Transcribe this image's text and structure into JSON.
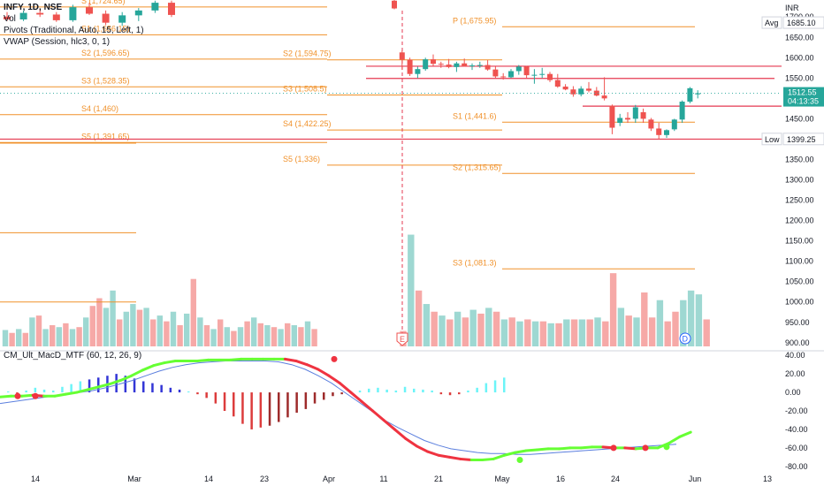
{
  "legend": {
    "symbol": "INFY, 1D, NSE",
    "vol": "Vol",
    "pivots": "Pivots (Traditional, Auto, 15, Left, 1)",
    "vwap": "VWAP (Session, hlc3, 0, 1)"
  },
  "macd_title": "CM_Ult_MacD_MTF (60, 12, 26, 9)",
  "colors": {
    "up": "#26a69a",
    "down": "#ef5350",
    "pivot": "#f0912a",
    "hline": "#e53950",
    "vol_up": "#9ed8d2",
    "vol_down": "#f6a9a7",
    "macd_up": "#66ff33",
    "macd_down": "#ef3340",
    "signal": "#5b7fde",
    "hist_cyan": "#6cf4f8",
    "hist_blue": "#3336d6",
    "hist_red": "#dc3c3c",
    "hist_maroon": "#9e2b2b"
  },
  "price_badges": {
    "avg_label": "Avg",
    "avg_value": "1685.10",
    "current": "1512.55",
    "countdown": "04:13:35",
    "low_label": "Low",
    "low_value": "1399.25",
    "currency": "INR"
  },
  "events": {
    "earnings": "E",
    "dividend": "D"
  },
  "chart_data": {
    "type": "candlestick",
    "x_ticks": [
      "14",
      "Mar",
      "14",
      "23",
      "Apr",
      "11",
      "21",
      "May",
      "16",
      "24",
      "Jun",
      "13"
    ],
    "price_axis": {
      "ticks": [
        "1700.00",
        "1650.00",
        "1600.00",
        "1550.00",
        "1500.00",
        "1450.00",
        "1400.00",
        "1350.00",
        "1300.00",
        "1250.00",
        "1200.00",
        "1150.00",
        "1100.00",
        "1050.00",
        "1000.00",
        "950.00",
        "900.00"
      ],
      "range": [
        880,
        1720
      ]
    },
    "macd_axis": {
      "ticks": [
        "40.00",
        "20.00",
        "0.00",
        "-20.00",
        "-40.00",
        "-60.00",
        "-80.00"
      ],
      "range": [
        -84,
        44
      ]
    },
    "pivot_labels": [
      {
        "text": "S2 (1,596.65)"
      },
      {
        "text": "S3 (1,528.35)"
      },
      {
        "text": "S4 (1,460)"
      },
      {
        "text": "S5 (1,391.65)"
      },
      {
        "text": "S1 (1,656.15)"
      },
      {
        "text": "S (1,724.65)"
      },
      {
        "text": "S2 (1,594.75)"
      },
      {
        "text": "S3 (1,508.5)"
      },
      {
        "text": "S4 (1,422.25)"
      },
      {
        "text": "S5 (1,336)"
      },
      {
        "text": "P (1,675.95)"
      },
      {
        "text": "S1 (1,441.6)"
      },
      {
        "text": "S2 (1,315.65)"
      },
      {
        "text": "S3 (1,081.3)"
      }
    ],
    "pivot_levels": [
      {
        "period": 1,
        "values": [
          1724.65,
          1656.15,
          1596.65,
          1528.35,
          1460,
          1391.65
        ]
      },
      {
        "period": 2,
        "values": [
          1594.75,
          1508.5,
          1422.25,
          1336
        ]
      },
      {
        "period": 3,
        "values": [
          1675.95,
          1441.6,
          1315.65,
          1081.3
        ]
      }
    ],
    "horizontal_lines": [
      1579,
      1549,
      1481,
      1400
    ],
    "candles_early": [
      {
        "o": 1701,
        "h": 1712,
        "l": 1690,
        "c": 1694
      },
      {
        "o": 1694,
        "h": 1716,
        "l": 1690,
        "c": 1710
      },
      {
        "o": 1710,
        "h": 1720,
        "l": 1700,
        "c": 1706
      },
      {
        "o": 1706,
        "h": 1712,
        "l": 1688,
        "c": 1692
      },
      {
        "o": 1692,
        "h": 1730,
        "l": 1688,
        "c": 1724
      },
      {
        "o": 1724,
        "h": 1735,
        "l": 1705,
        "c": 1708
      },
      {
        "o": 1708,
        "h": 1716,
        "l": 1680,
        "c": 1686
      },
      {
        "o": 1686,
        "h": 1712,
        "l": 1678,
        "c": 1704
      },
      {
        "o": 1704,
        "h": 1722,
        "l": 1690,
        "c": 1716
      },
      {
        "o": 1716,
        "h": 1740,
        "l": 1710,
        "c": 1735
      },
      {
        "o": 1735,
        "h": 1740,
        "l": 1700,
        "c": 1705
      }
    ],
    "candles_late": [
      {
        "o": 1740,
        "h": 1744,
        "l": 1719,
        "c": 1721
      },
      {
        "o": 1613,
        "h": 1618,
        "l": 1570,
        "c": 1595
      },
      {
        "o": 1595,
        "h": 1600,
        "l": 1555,
        "c": 1560
      },
      {
        "o": 1560,
        "h": 1578,
        "l": 1550,
        "c": 1572
      },
      {
        "o": 1572,
        "h": 1600,
        "l": 1568,
        "c": 1596
      },
      {
        "o": 1596,
        "h": 1608,
        "l": 1580,
        "c": 1585
      },
      {
        "o": 1585,
        "h": 1590,
        "l": 1575,
        "c": 1583
      },
      {
        "o": 1583,
        "h": 1597,
        "l": 1574,
        "c": 1577
      },
      {
        "o": 1577,
        "h": 1590,
        "l": 1565,
        "c": 1586
      },
      {
        "o": 1586,
        "h": 1598,
        "l": 1578,
        "c": 1579
      },
      {
        "o": 1579,
        "h": 1586,
        "l": 1570,
        "c": 1581
      },
      {
        "o": 1581,
        "h": 1590,
        "l": 1575,
        "c": 1582
      },
      {
        "o": 1582,
        "h": 1594,
        "l": 1568,
        "c": 1571
      },
      {
        "o": 1571,
        "h": 1578,
        "l": 1550,
        "c": 1554
      },
      {
        "o": 1554,
        "h": 1562,
        "l": 1546,
        "c": 1552
      },
      {
        "o": 1552,
        "h": 1572,
        "l": 1550,
        "c": 1567
      },
      {
        "o": 1567,
        "h": 1582,
        "l": 1558,
        "c": 1578
      },
      {
        "o": 1578,
        "h": 1580,
        "l": 1550,
        "c": 1557
      },
      {
        "o": 1557,
        "h": 1572,
        "l": 1536,
        "c": 1558
      },
      {
        "o": 1558,
        "h": 1575,
        "l": 1550,
        "c": 1560
      },
      {
        "o": 1560,
        "h": 1565,
        "l": 1540,
        "c": 1545
      },
      {
        "o": 1545,
        "h": 1560,
        "l": 1526,
        "c": 1529
      },
      {
        "o": 1529,
        "h": 1535,
        "l": 1520,
        "c": 1522
      },
      {
        "o": 1522,
        "h": 1530,
        "l": 1504,
        "c": 1510
      },
      {
        "o": 1510,
        "h": 1530,
        "l": 1505,
        "c": 1524
      },
      {
        "o": 1524,
        "h": 1540,
        "l": 1515,
        "c": 1519
      },
      {
        "o": 1519,
        "h": 1528,
        "l": 1505,
        "c": 1507
      },
      {
        "o": 1507,
        "h": 1552,
        "l": 1495,
        "c": 1500
      },
      {
        "o": 1482,
        "h": 1485,
        "l": 1412,
        "c": 1428
      },
      {
        "o": 1440,
        "h": 1462,
        "l": 1432,
        "c": 1452
      },
      {
        "o": 1452,
        "h": 1466,
        "l": 1440,
        "c": 1448
      },
      {
        "o": 1450,
        "h": 1484,
        "l": 1440,
        "c": 1478
      },
      {
        "o": 1466,
        "h": 1475,
        "l": 1440,
        "c": 1450
      },
      {
        "o": 1448,
        "h": 1452,
        "l": 1420,
        "c": 1426
      },
      {
        "o": 1426,
        "h": 1440,
        "l": 1400,
        "c": 1410
      },
      {
        "o": 1410,
        "h": 1424,
        "l": 1403,
        "c": 1422
      },
      {
        "o": 1424,
        "h": 1450,
        "l": 1420,
        "c": 1448
      },
      {
        "o": 1448,
        "h": 1495,
        "l": 1440,
        "c": 1492
      },
      {
        "o": 1492,
        "h": 1528,
        "l": 1488,
        "c": 1525
      },
      {
        "o": 1510,
        "h": 1520,
        "l": 1500,
        "c": 1512.55
      }
    ],
    "volume": {
      "range": [
        0,
        100
      ],
      "early": [
        {
          "v": 17,
          "up": true
        },
        {
          "v": 14,
          "up": false
        },
        {
          "v": 18,
          "up": true
        },
        {
          "v": 14,
          "up": false
        },
        {
          "v": 30,
          "up": true
        },
        {
          "v": 32,
          "up": false
        },
        {
          "v": 18,
          "up": true
        },
        {
          "v": 22,
          "up": false
        },
        {
          "v": 20,
          "up": true
        },
        {
          "v": 24,
          "up": false
        },
        {
          "v": 18,
          "up": true
        },
        {
          "v": 20,
          "up": false
        },
        {
          "v": 30,
          "up": true
        },
        {
          "v": 42,
          "up": false
        },
        {
          "v": 50,
          "up": false
        },
        {
          "v": 40,
          "up": true
        },
        {
          "v": 58,
          "up": true
        },
        {
          "v": 28,
          "up": false
        },
        {
          "v": 36,
          "up": true
        },
        {
          "v": 44,
          "up": true
        },
        {
          "v": 38,
          "up": false
        },
        {
          "v": 40,
          "up": true
        },
        {
          "v": 28,
          "up": false
        },
        {
          "v": 32,
          "up": true
        },
        {
          "v": 26,
          "up": false
        },
        {
          "v": 36,
          "up": true
        },
        {
          "v": 22,
          "up": false
        },
        {
          "v": 34,
          "up": true
        },
        {
          "v": 70,
          "up": false
        },
        {
          "v": 30,
          "up": true
        },
        {
          "v": 22,
          "up": false
        },
        {
          "v": 18,
          "up": true
        },
        {
          "v": 28,
          "up": false
        },
        {
          "v": 20,
          "up": true
        },
        {
          "v": 16,
          "up": false
        },
        {
          "v": 20,
          "up": true
        },
        {
          "v": 26,
          "up": false
        },
        {
          "v": 30,
          "up": true
        },
        {
          "v": 24,
          "up": false
        },
        {
          "v": 22,
          "up": true
        },
        {
          "v": 20,
          "up": false
        },
        {
          "v": 18,
          "up": true
        },
        {
          "v": 24,
          "up": false
        },
        {
          "v": 22,
          "up": true
        },
        {
          "v": 20,
          "up": false
        },
        {
          "v": 26,
          "up": true
        },
        {
          "v": 18,
          "up": false
        }
      ],
      "late": [
        {
          "v": 16,
          "up": false
        },
        {
          "v": 116,
          "up": true
        },
        {
          "v": 58,
          "up": false
        },
        {
          "v": 44,
          "up": true
        },
        {
          "v": 36,
          "up": false
        },
        {
          "v": 32,
          "up": true
        },
        {
          "v": 28,
          "up": false
        },
        {
          "v": 36,
          "up": true
        },
        {
          "v": 30,
          "up": false
        },
        {
          "v": 38,
          "up": true
        },
        {
          "v": 34,
          "up": false
        },
        {
          "v": 40,
          "up": true
        },
        {
          "v": 36,
          "up": false
        },
        {
          "v": 28,
          "up": true
        },
        {
          "v": 30,
          "up": false
        },
        {
          "v": 26,
          "up": true
        },
        {
          "v": 28,
          "up": false
        },
        {
          "v": 26,
          "up": true
        },
        {
          "v": 26,
          "up": false
        },
        {
          "v": 24,
          "up": true
        },
        {
          "v": 24,
          "up": false
        },
        {
          "v": 28,
          "up": true
        },
        {
          "v": 28,
          "up": false
        },
        {
          "v": 28,
          "up": true
        },
        {
          "v": 28,
          "up": false
        },
        {
          "v": 30,
          "up": true
        },
        {
          "v": 26,
          "up": false
        },
        {
          "v": 76,
          "up": false
        },
        {
          "v": 40,
          "up": true
        },
        {
          "v": 32,
          "up": false
        },
        {
          "v": 30,
          "up": true
        },
        {
          "v": 56,
          "up": false
        },
        {
          "v": 30,
          "up": false
        },
        {
          "v": 48,
          "up": true
        },
        {
          "v": 26,
          "up": false
        },
        {
          "v": 36,
          "up": false
        },
        {
          "v": 48,
          "up": true
        },
        {
          "v": 58,
          "up": true
        },
        {
          "v": 54,
          "up": true
        },
        {
          "v": 28,
          "up": false
        }
      ]
    },
    "macd": {
      "line": [
        -5,
        -4,
        -4,
        -3,
        -4,
        -4,
        -2,
        0,
        3,
        6,
        9,
        13,
        18,
        24,
        29,
        32,
        34,
        34,
        34,
        35,
        35,
        35,
        36,
        36,
        36,
        36,
        36,
        34,
        30,
        25,
        18,
        10,
        0,
        -10,
        -20,
        -30,
        -40,
        -50,
        -58,
        -64,
        -68,
        -70,
        -72,
        -73,
        -73,
        -72,
        -68,
        -65,
        -63,
        -62,
        -61,
        -61,
        -60,
        -60,
        -59,
        -59,
        -60,
        -60,
        -61,
        -60,
        -60,
        -55,
        -48,
        -43
      ],
      "signal": [
        -12,
        -10,
        -8,
        -6,
        -4,
        -2,
        0,
        2,
        5,
        9,
        13,
        18,
        23,
        27,
        30,
        32,
        33,
        34,
        34,
        34,
        34,
        33,
        30,
        25,
        18,
        10,
        0,
        -10,
        -20,
        -30,
        -38,
        -45,
        -52,
        -57,
        -61,
        -63,
        -65,
        -66,
        -66,
        -67,
        -67,
        -66,
        -65,
        -64,
        -63,
        -62,
        -61,
        -60,
        -59,
        -58,
        -57,
        -56
      ],
      "hist": [
        1,
        -2,
        2,
        5,
        3,
        2,
        6,
        9,
        12,
        14,
        16,
        18,
        20,
        18,
        15,
        12,
        10,
        8,
        5,
        3,
        1,
        -2,
        -6,
        -12,
        -20,
        -26,
        -34,
        -40,
        -38,
        -36,
        -32,
        -27,
        -22,
        -18,
        -12,
        -8,
        -4,
        -2,
        0,
        2,
        4,
        5,
        3,
        2,
        6,
        4,
        3,
        2,
        -2,
        -3,
        -2,
        2,
        5,
        10,
        13,
        16
      ],
      "cross_points": [
        -4,
        -4,
        36,
        -73,
        -60,
        -60,
        -59
      ]
    }
  }
}
